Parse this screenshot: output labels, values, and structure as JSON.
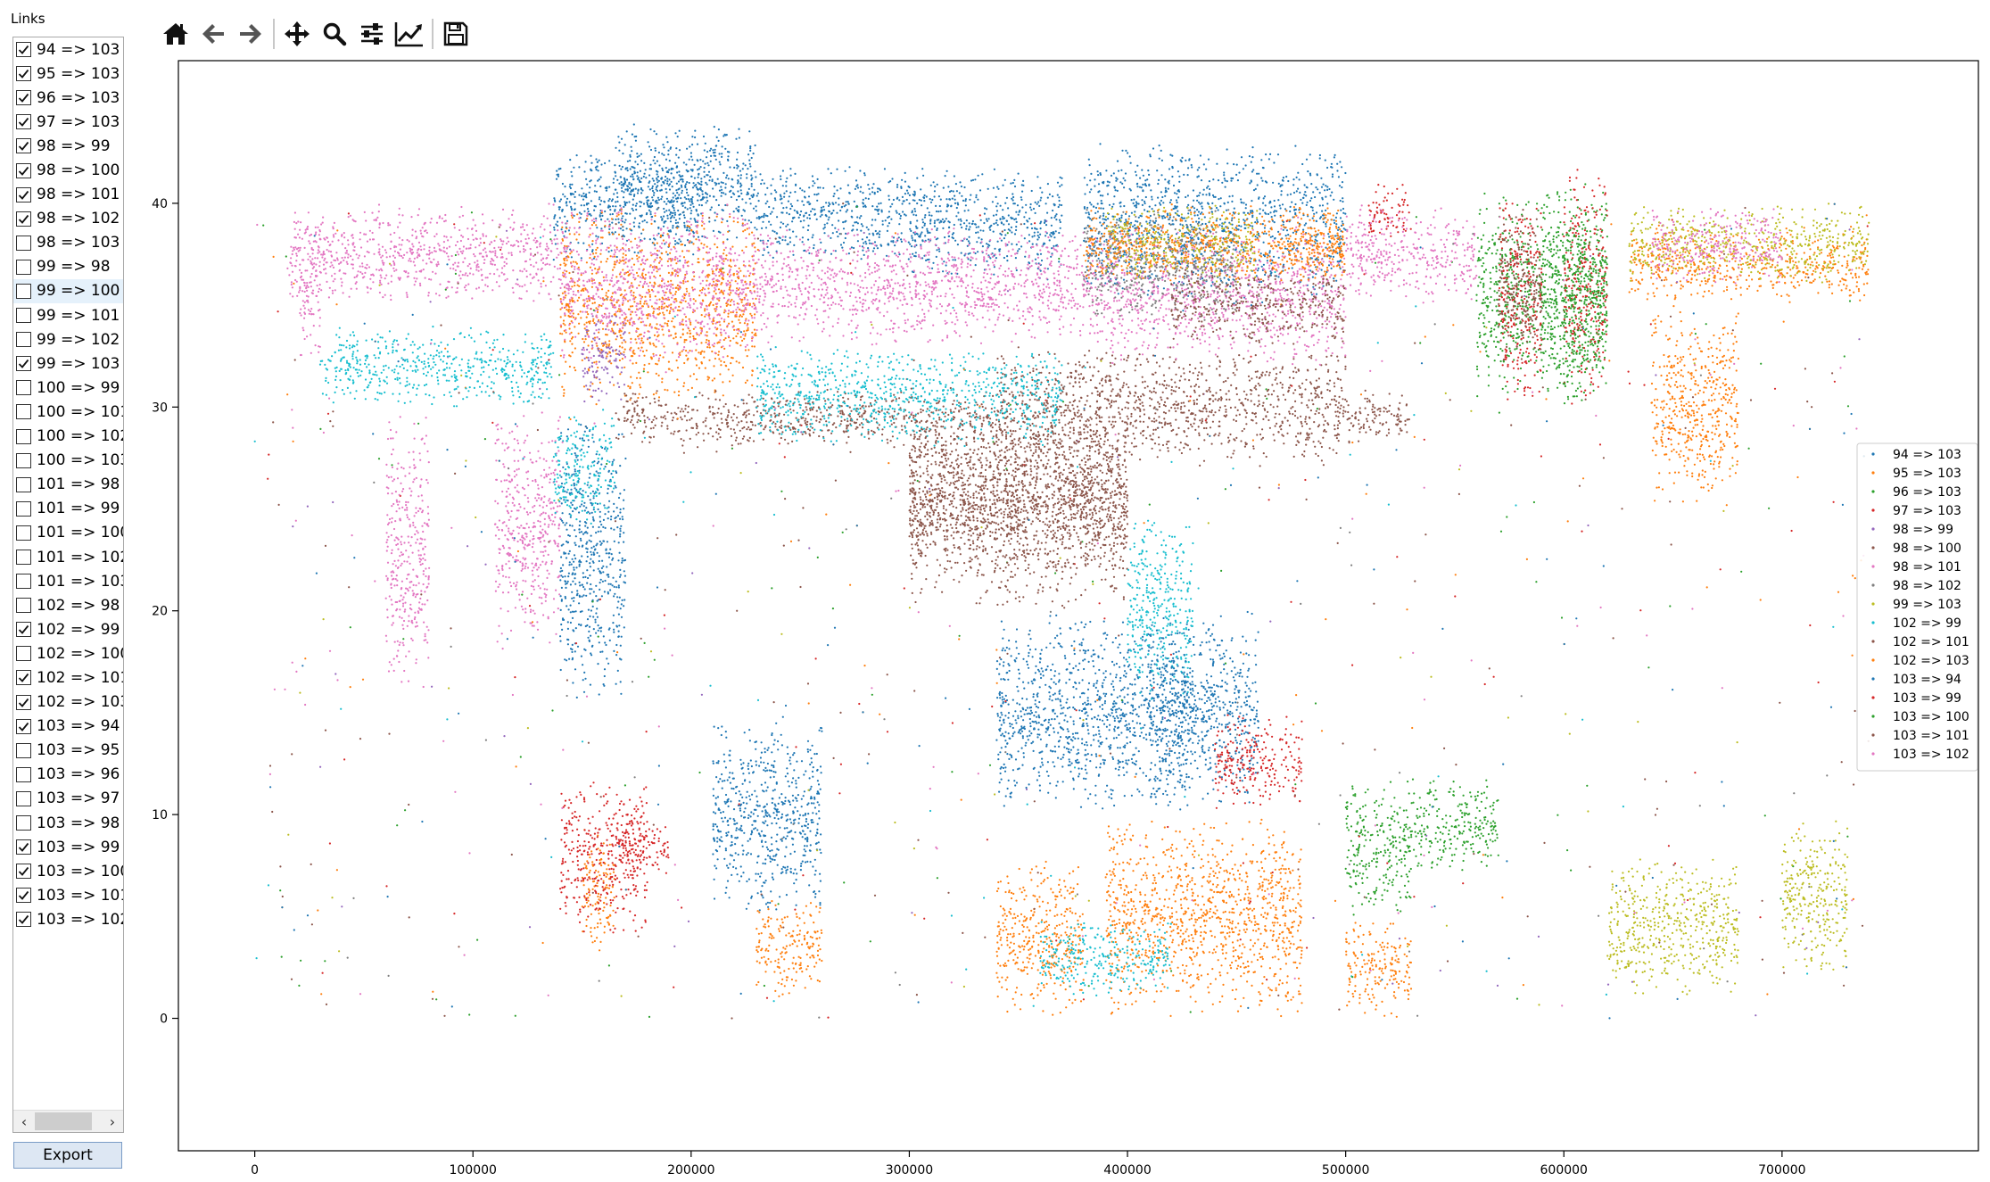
{
  "sidebar": {
    "title": "Links",
    "export_label": "Export",
    "selected_index": 10,
    "links": [
      {
        "label": "94 => 103",
        "checked": true
      },
      {
        "label": "95 => 103",
        "checked": true
      },
      {
        "label": "96 => 103",
        "checked": true
      },
      {
        "label": "97 => 103",
        "checked": true
      },
      {
        "label": "98 => 99",
        "checked": true
      },
      {
        "label": "98 => 100",
        "checked": true
      },
      {
        "label": "98 => 101",
        "checked": true
      },
      {
        "label": "98 => 102",
        "checked": true
      },
      {
        "label": "98 => 103",
        "checked": false
      },
      {
        "label": "99 => 98",
        "checked": false
      },
      {
        "label": "99 => 100",
        "checked": false
      },
      {
        "label": "99 => 101",
        "checked": false
      },
      {
        "label": "99 => 102",
        "checked": false
      },
      {
        "label": "99 => 103",
        "checked": true
      },
      {
        "label": "100 => 99",
        "checked": false
      },
      {
        "label": "100 => 101",
        "checked": false
      },
      {
        "label": "100 => 102",
        "checked": false
      },
      {
        "label": "100 => 103",
        "checked": false
      },
      {
        "label": "101 => 98",
        "checked": false
      },
      {
        "label": "101 => 99",
        "checked": false
      },
      {
        "label": "101 => 100",
        "checked": false
      },
      {
        "label": "101 => 102",
        "checked": false
      },
      {
        "label": "101 => 103",
        "checked": false
      },
      {
        "label": "102 => 98",
        "checked": false
      },
      {
        "label": "102 => 99",
        "checked": true
      },
      {
        "label": "102 => 100",
        "checked": false
      },
      {
        "label": "102 => 101",
        "checked": true
      },
      {
        "label": "102 => 103",
        "checked": true
      },
      {
        "label": "103 => 94",
        "checked": true
      },
      {
        "label": "103 => 95",
        "checked": false
      },
      {
        "label": "103 => 96",
        "checked": false
      },
      {
        "label": "103 => 97",
        "checked": false
      },
      {
        "label": "103 => 98",
        "checked": false
      },
      {
        "label": "103 => 99",
        "checked": true
      },
      {
        "label": "103 => 100",
        "checked": true
      },
      {
        "label": "103 => 101",
        "checked": true
      },
      {
        "label": "103 => 102",
        "checked": true
      }
    ]
  },
  "toolbar": {
    "tools": [
      "home-icon",
      "back-arrow-icon",
      "forward-arrow-icon",
      "pan-icon",
      "zoom-icon",
      "configure-subplots-icon",
      "edit-axis-icon",
      "save-icon"
    ]
  },
  "chart_data": {
    "type": "scatter",
    "title": "",
    "xlabel": "",
    "ylabel": "",
    "xlim": [
      -35000,
      790000
    ],
    "ylim": [
      -6.5,
      47
    ],
    "x_ticks": [
      0,
      100000,
      200000,
      300000,
      400000,
      500000,
      600000,
      700000
    ],
    "y_ticks": [
      0,
      10,
      20,
      30,
      40
    ],
    "grid": false,
    "legend_position": "center-right",
    "series": [
      {
        "name": "94 => 103",
        "color": "#1f77b4",
        "clusters": [
          [
            137000,
            205000,
            37,
            43
          ],
          [
            165000,
            230000,
            38,
            44
          ],
          [
            230000,
            300000,
            37,
            42
          ],
          [
            300000,
            370000,
            36,
            42
          ],
          [
            380000,
            500000,
            35,
            43
          ],
          [
            140000,
            170000,
            15,
            30
          ],
          [
            210000,
            260000,
            5,
            15
          ],
          [
            340000,
            460000,
            10,
            20
          ]
        ]
      },
      {
        "name": "95 => 103",
        "color": "#ff7f0e",
        "clusters": [
          [
            140000,
            230000,
            30,
            40
          ],
          [
            150000,
            165000,
            3,
            10
          ],
          [
            230000,
            260000,
            1,
            6
          ],
          [
            340000,
            380000,
            0,
            8
          ],
          [
            390000,
            480000,
            0,
            10
          ],
          [
            500000,
            530000,
            0,
            5
          ],
          [
            630000,
            740000,
            35,
            39
          ],
          [
            640000,
            680000,
            25,
            35
          ]
        ]
      },
      {
        "name": "96 => 103",
        "color": "#2ca02c",
        "clusters": [
          [
            500000,
            530000,
            5,
            12
          ],
          [
            530000,
            570000,
            7,
            12
          ],
          [
            560000,
            620000,
            30,
            41
          ]
        ]
      },
      {
        "name": "97 => 103",
        "color": "#d62728",
        "clusters": [
          [
            140000,
            180000,
            4,
            12
          ],
          [
            165000,
            190000,
            7,
            10
          ],
          [
            510000,
            530000,
            38,
            41
          ],
          [
            570000,
            590000,
            30,
            41
          ],
          [
            440000,
            480000,
            10,
            15
          ]
        ]
      },
      {
        "name": "98 => 99",
        "color": "#9467bd",
        "clusters": [
          [
            150000,
            170000,
            30,
            35
          ]
        ]
      },
      {
        "name": "98 => 100",
        "color": "#8c564b",
        "clusters": [
          [
            165000,
            230000,
            28,
            31
          ],
          [
            230000,
            340000,
            28,
            31
          ],
          [
            340000,
            500000,
            27,
            33
          ],
          [
            300000,
            400000,
            20,
            30
          ],
          [
            500000,
            530000,
            28,
            31
          ]
        ]
      },
      {
        "name": "98 => 101",
        "color": "#e377c2",
        "clusters": [
          [
            15000,
            140000,
            35,
            40
          ],
          [
            140000,
            230000,
            32,
            40
          ],
          [
            230000,
            390000,
            33,
            39
          ],
          [
            390000,
            500000,
            32,
            39
          ],
          [
            500000,
            560000,
            35,
            40
          ],
          [
            60000,
            80000,
            16,
            30
          ],
          [
            110000,
            140000,
            18,
            30
          ]
        ]
      },
      {
        "name": "98 => 102",
        "color": "#7f7f7f",
        "clusters": [
          [
            380000,
            450000,
            34,
            40
          ]
        ]
      },
      {
        "name": "99 => 103",
        "color": "#bcbd22",
        "clusters": [
          [
            630000,
            740000,
            36,
            40
          ],
          [
            390000,
            460000,
            36,
            40
          ],
          [
            620000,
            680000,
            1,
            8
          ],
          [
            700000,
            730000,
            2,
            10
          ]
        ]
      },
      {
        "name": "102 => 99",
        "color": "#17becf",
        "clusters": [
          [
            30000,
            137000,
            30,
            34
          ],
          [
            137000,
            165000,
            24,
            30
          ],
          [
            230000,
            370000,
            28,
            33
          ],
          [
            400000,
            430000,
            15,
            25
          ],
          [
            360000,
            420000,
            1,
            5
          ]
        ]
      },
      {
        "name": "102 => 101",
        "color": "#8c564b",
        "clusters": [
          [
            420000,
            500000,
            33,
            37
          ],
          [
            300000,
            400000,
            22,
            30
          ]
        ]
      },
      {
        "name": "102 => 103",
        "color": "#ff7f0e",
        "clusters": [
          [
            380000,
            500000,
            36,
            40
          ],
          [
            470000,
            500000,
            36,
            40
          ]
        ]
      },
      {
        "name": "103 => 94",
        "color": "#1f77b4",
        "clusters": [
          [
            410000,
            430000,
            10,
            20
          ]
        ]
      },
      {
        "name": "103 => 99",
        "color": "#d62728",
        "clusters": [
          [
            600000,
            620000,
            30,
            42
          ]
        ]
      },
      {
        "name": "103 => 100",
        "color": "#2ca02c",
        "clusters": [
          [
            590000,
            620000,
            30,
            41
          ]
        ]
      },
      {
        "name": "103 => 101",
        "color": "#8c564b",
        "clusters": [
          [
            570000,
            590000,
            32,
            40
          ]
        ]
      },
      {
        "name": "103 => 102",
        "color": "#e377c2",
        "clusters": [
          [
            640000,
            700000,
            36,
            40
          ],
          [
            20000,
            30000,
            32,
            40
          ]
        ]
      }
    ]
  }
}
